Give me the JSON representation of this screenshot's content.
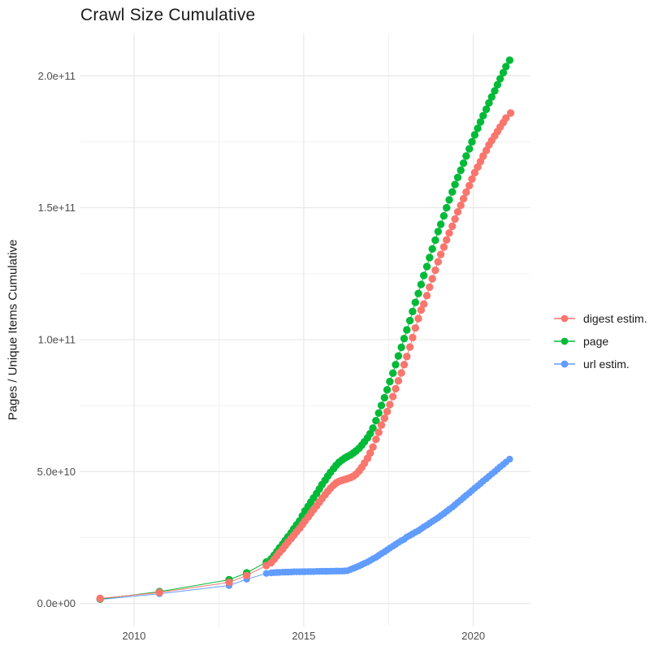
{
  "title": "Crawl Size Cumulative",
  "chart_data": {
    "type": "scatter",
    "draw_lines": true,
    "title": "Crawl Size Cumulative",
    "xlabel": "",
    "ylabel": "Pages / Unique Items Cumulative",
    "legend_position": "right-center",
    "grid": true,
    "background": "#ffffff",
    "grid_major_color": "#e9e9e9",
    "grid_minor_color": "#f1f1f1",
    "tick_label_color": "#4d4d4d",
    "xlim": [
      2008.4,
      2021.7
    ],
    "ylim_absolute": [
      -8600000000,
      216000000000
    ],
    "value_unit": "absolute values = listed value x 1e9",
    "x_ticks": [
      {
        "v": 2010,
        "label": "2010"
      },
      {
        "v": 2015,
        "label": "2015"
      },
      {
        "v": 2020,
        "label": "2020"
      }
    ],
    "x_minor_ticks": [
      2012.5,
      2017.5
    ],
    "y_ticks": [
      {
        "v": 0,
        "label": "0.0e+00"
      },
      {
        "v": 50,
        "label": "5.0e+10"
      },
      {
        "v": 100,
        "label": "1.0e+11"
      },
      {
        "v": 150,
        "label": "1.5e+11"
      },
      {
        "v": 200,
        "label": "2.0e+11"
      }
    ],
    "y_minor_ticks": [
      25,
      75,
      125,
      175
    ],
    "series": [
      {
        "name": "digest estim.",
        "color": "#F8766D",
        "point_radius": 4.7,
        "points": [
          [
            2009.0,
            1.9
          ],
          [
            2010.75,
            4.2
          ],
          [
            2012.8,
            8.0
          ],
          [
            2013.32,
            10.6
          ],
          [
            2013.9,
            14.4
          ],
          [
            2014.04,
            15.5
          ],
          [
            2014.13,
            16.8
          ],
          [
            2014.21,
            18.1
          ],
          [
            2014.29,
            19.4
          ],
          [
            2014.38,
            20.7
          ],
          [
            2014.46,
            22.0
          ],
          [
            2014.54,
            23.3
          ],
          [
            2014.63,
            24.6
          ],
          [
            2014.71,
            25.9
          ],
          [
            2014.79,
            27.2
          ],
          [
            2014.88,
            28.5
          ],
          [
            2014.96,
            29.9
          ],
          [
            2015.04,
            31.3
          ],
          [
            2015.13,
            32.8
          ],
          [
            2015.21,
            34.2
          ],
          [
            2015.29,
            35.6
          ],
          [
            2015.38,
            37.0
          ],
          [
            2015.46,
            38.4
          ],
          [
            2015.54,
            39.8
          ],
          [
            2015.63,
            41.2
          ],
          [
            2015.71,
            42.5
          ],
          [
            2015.79,
            43.7
          ],
          [
            2015.88,
            44.8
          ],
          [
            2015.96,
            45.7
          ],
          [
            2016.04,
            46.3
          ],
          [
            2016.13,
            46.7
          ],
          [
            2016.21,
            47.0
          ],
          [
            2016.29,
            47.3
          ],
          [
            2016.38,
            47.7
          ],
          [
            2016.46,
            48.2
          ],
          [
            2016.54,
            49.0
          ],
          [
            2016.63,
            50.2
          ],
          [
            2016.71,
            51.6
          ],
          [
            2016.79,
            53.2
          ],
          [
            2016.88,
            55.0
          ],
          [
            2016.96,
            57.0
          ],
          [
            2017.04,
            59.3
          ],
          [
            2017.13,
            62.2
          ],
          [
            2017.21,
            64.9
          ],
          [
            2017.29,
            67.6
          ],
          [
            2017.38,
            70.2
          ],
          [
            2017.46,
            72.7
          ],
          [
            2017.54,
            75.4
          ],
          [
            2017.63,
            78.4
          ],
          [
            2017.71,
            81.4
          ],
          [
            2017.79,
            84.4
          ],
          [
            2017.88,
            87.4
          ],
          [
            2017.96,
            90.5
          ],
          [
            2018.04,
            93.6
          ],
          [
            2018.13,
            97.2
          ],
          [
            2018.21,
            100.8
          ],
          [
            2018.29,
            104.4
          ],
          [
            2018.38,
            108.0
          ],
          [
            2018.46,
            111.2
          ],
          [
            2018.54,
            113.5
          ],
          [
            2018.63,
            116.7
          ],
          [
            2018.71,
            119.9
          ],
          [
            2018.79,
            123.1
          ],
          [
            2018.88,
            126.3
          ],
          [
            2018.96,
            129.5
          ],
          [
            2019.04,
            132.3
          ],
          [
            2019.13,
            135.1
          ],
          [
            2019.21,
            137.8
          ],
          [
            2019.29,
            140.4
          ],
          [
            2019.38,
            143.0
          ],
          [
            2019.46,
            145.7
          ],
          [
            2019.54,
            148.4
          ],
          [
            2019.63,
            150.9
          ],
          [
            2019.71,
            153.4
          ],
          [
            2019.79,
            155.9
          ],
          [
            2019.88,
            158.4
          ],
          [
            2019.96,
            160.9
          ],
          [
            2020.04,
            163.3
          ],
          [
            2020.13,
            165.4
          ],
          [
            2020.21,
            167.5
          ],
          [
            2020.29,
            169.6
          ],
          [
            2020.38,
            171.7
          ],
          [
            2020.46,
            173.8
          ],
          [
            2020.54,
            175.5
          ],
          [
            2020.63,
            177.2
          ],
          [
            2020.71,
            178.9
          ],
          [
            2020.79,
            180.6
          ],
          [
            2020.88,
            182.3
          ],
          [
            2020.96,
            184.0
          ],
          [
            2021.1,
            185.9
          ]
        ]
      },
      {
        "name": "page",
        "color": "#00BA38",
        "point_radius": 4.7,
        "points": [
          [
            2009.0,
            1.7
          ],
          [
            2010.75,
            4.5
          ],
          [
            2012.8,
            9.0
          ],
          [
            2013.32,
            11.6
          ],
          [
            2013.9,
            15.7
          ],
          [
            2014.04,
            16.9
          ],
          [
            2014.13,
            18.3
          ],
          [
            2014.21,
            19.7
          ],
          [
            2014.29,
            21.1
          ],
          [
            2014.38,
            22.5
          ],
          [
            2014.46,
            23.9
          ],
          [
            2014.54,
            25.3
          ],
          [
            2014.63,
            26.8
          ],
          [
            2014.71,
            28.3
          ],
          [
            2014.79,
            29.8
          ],
          [
            2014.88,
            31.3
          ],
          [
            2014.96,
            33.2
          ],
          [
            2015.04,
            35.1
          ],
          [
            2015.13,
            36.8
          ],
          [
            2015.21,
            38.4
          ],
          [
            2015.29,
            40.0
          ],
          [
            2015.38,
            41.7
          ],
          [
            2015.46,
            43.4
          ],
          [
            2015.54,
            45.1
          ],
          [
            2015.63,
            46.7
          ],
          [
            2015.71,
            48.3
          ],
          [
            2015.79,
            49.7
          ],
          [
            2015.88,
            51.1
          ],
          [
            2015.96,
            52.4
          ],
          [
            2016.04,
            53.5
          ],
          [
            2016.13,
            54.4
          ],
          [
            2016.21,
            55.1
          ],
          [
            2016.29,
            55.7
          ],
          [
            2016.38,
            56.3
          ],
          [
            2016.46,
            57.0
          ],
          [
            2016.54,
            57.8
          ],
          [
            2016.63,
            58.8
          ],
          [
            2016.71,
            60.0
          ],
          [
            2016.79,
            61.3
          ],
          [
            2016.88,
            62.8
          ],
          [
            2016.96,
            64.4
          ],
          [
            2017.04,
            66.5
          ],
          [
            2017.13,
            69.3
          ],
          [
            2017.21,
            72.2
          ],
          [
            2017.29,
            75.1
          ],
          [
            2017.38,
            78.0
          ],
          [
            2017.46,
            81.0
          ],
          [
            2017.54,
            84.1
          ],
          [
            2017.63,
            87.3
          ],
          [
            2017.71,
            90.5
          ],
          [
            2017.79,
            93.8
          ],
          [
            2017.88,
            97.1
          ],
          [
            2017.96,
            100.4
          ],
          [
            2018.04,
            103.7
          ],
          [
            2018.13,
            107.2
          ],
          [
            2018.21,
            110.7
          ],
          [
            2018.29,
            114.1
          ],
          [
            2018.38,
            117.5
          ],
          [
            2018.46,
            120.9
          ],
          [
            2018.54,
            124.3
          ],
          [
            2018.63,
            127.7
          ],
          [
            2018.71,
            131.1
          ],
          [
            2018.79,
            134.4
          ],
          [
            2018.88,
            137.7
          ],
          [
            2018.96,
            141.0
          ],
          [
            2019.04,
            143.7
          ],
          [
            2019.13,
            146.9
          ],
          [
            2019.21,
            150.0
          ],
          [
            2019.29,
            153.0
          ],
          [
            2019.38,
            156.0
          ],
          [
            2019.46,
            158.8
          ],
          [
            2019.54,
            161.5
          ],
          [
            2019.63,
            164.2
          ],
          [
            2019.71,
            166.9
          ],
          [
            2019.79,
            169.6
          ],
          [
            2019.88,
            172.3
          ],
          [
            2019.96,
            175.0
          ],
          [
            2020.04,
            177.6
          ],
          [
            2020.13,
            180.1
          ],
          [
            2020.21,
            182.5
          ],
          [
            2020.29,
            184.9
          ],
          [
            2020.38,
            187.3
          ],
          [
            2020.46,
            189.7
          ],
          [
            2020.54,
            192.0
          ],
          [
            2020.63,
            194.3
          ],
          [
            2020.71,
            196.6
          ],
          [
            2020.79,
            198.9
          ],
          [
            2020.88,
            201.2
          ],
          [
            2020.96,
            203.5
          ],
          [
            2021.07,
            205.9
          ]
        ]
      },
      {
        "name": "url estim.",
        "color": "#619CFF",
        "point_radius": 4.2,
        "points": [
          [
            2009.0,
            1.5
          ],
          [
            2010.75,
            3.7
          ],
          [
            2012.8,
            6.8
          ],
          [
            2013.32,
            9.2
          ],
          [
            2013.9,
            11.4
          ],
          [
            2014.04,
            11.6
          ],
          [
            2014.13,
            11.7
          ],
          [
            2014.21,
            11.75
          ],
          [
            2014.29,
            11.8
          ],
          [
            2014.38,
            11.85
          ],
          [
            2014.46,
            11.9
          ],
          [
            2014.54,
            11.9
          ],
          [
            2014.63,
            11.95
          ],
          [
            2014.71,
            12.0
          ],
          [
            2014.79,
            12.0
          ],
          [
            2014.88,
            12.0
          ],
          [
            2014.96,
            12.05
          ],
          [
            2015.04,
            12.05
          ],
          [
            2015.13,
            12.1
          ],
          [
            2015.21,
            12.1
          ],
          [
            2015.29,
            12.1
          ],
          [
            2015.38,
            12.15
          ],
          [
            2015.46,
            12.15
          ],
          [
            2015.54,
            12.2
          ],
          [
            2015.63,
            12.2
          ],
          [
            2015.71,
            12.2
          ],
          [
            2015.79,
            12.25
          ],
          [
            2015.88,
            12.25
          ],
          [
            2015.96,
            12.3
          ],
          [
            2016.04,
            12.3
          ],
          [
            2016.13,
            12.3
          ],
          [
            2016.21,
            12.35
          ],
          [
            2016.29,
            12.4
          ],
          [
            2016.38,
            12.9
          ],
          [
            2016.46,
            13.3
          ],
          [
            2016.54,
            13.7
          ],
          [
            2016.63,
            14.2
          ],
          [
            2016.71,
            14.7
          ],
          [
            2016.79,
            15.2
          ],
          [
            2016.88,
            15.7
          ],
          [
            2016.96,
            16.3
          ],
          [
            2017.04,
            16.9
          ],
          [
            2017.13,
            17.5
          ],
          [
            2017.21,
            18.2
          ],
          [
            2017.29,
            18.9
          ],
          [
            2017.38,
            19.6
          ],
          [
            2017.46,
            20.3
          ],
          [
            2017.54,
            21.0
          ],
          [
            2017.63,
            21.7
          ],
          [
            2017.71,
            22.4
          ],
          [
            2017.79,
            23.1
          ],
          [
            2017.88,
            23.8
          ],
          [
            2017.96,
            24.3
          ],
          [
            2018.04,
            25.2
          ],
          [
            2018.13,
            25.8
          ],
          [
            2018.21,
            26.4
          ],
          [
            2018.29,
            27.0
          ],
          [
            2018.38,
            27.6
          ],
          [
            2018.46,
            28.3
          ],
          [
            2018.54,
            29.0
          ],
          [
            2018.63,
            29.7
          ],
          [
            2018.71,
            30.4
          ],
          [
            2018.79,
            31.1
          ],
          [
            2018.88,
            31.8
          ],
          [
            2018.96,
            32.5
          ],
          [
            2019.04,
            33.3
          ],
          [
            2019.13,
            34.1
          ],
          [
            2019.21,
            34.9
          ],
          [
            2019.29,
            35.7
          ],
          [
            2019.38,
            36.5
          ],
          [
            2019.46,
            37.4
          ],
          [
            2019.54,
            38.3
          ],
          [
            2019.63,
            39.2
          ],
          [
            2019.71,
            40.1
          ],
          [
            2019.79,
            41.0
          ],
          [
            2019.88,
            41.9
          ],
          [
            2019.96,
            42.8
          ],
          [
            2020.04,
            43.7
          ],
          [
            2020.13,
            44.6
          ],
          [
            2020.21,
            45.5
          ],
          [
            2020.29,
            46.4
          ],
          [
            2020.38,
            47.3
          ],
          [
            2020.46,
            48.2
          ],
          [
            2020.54,
            49.1
          ],
          [
            2020.63,
            50.0
          ],
          [
            2020.71,
            50.9
          ],
          [
            2020.79,
            51.8
          ],
          [
            2020.88,
            52.7
          ],
          [
            2020.96,
            53.6
          ],
          [
            2021.07,
            54.7
          ]
        ]
      }
    ]
  }
}
